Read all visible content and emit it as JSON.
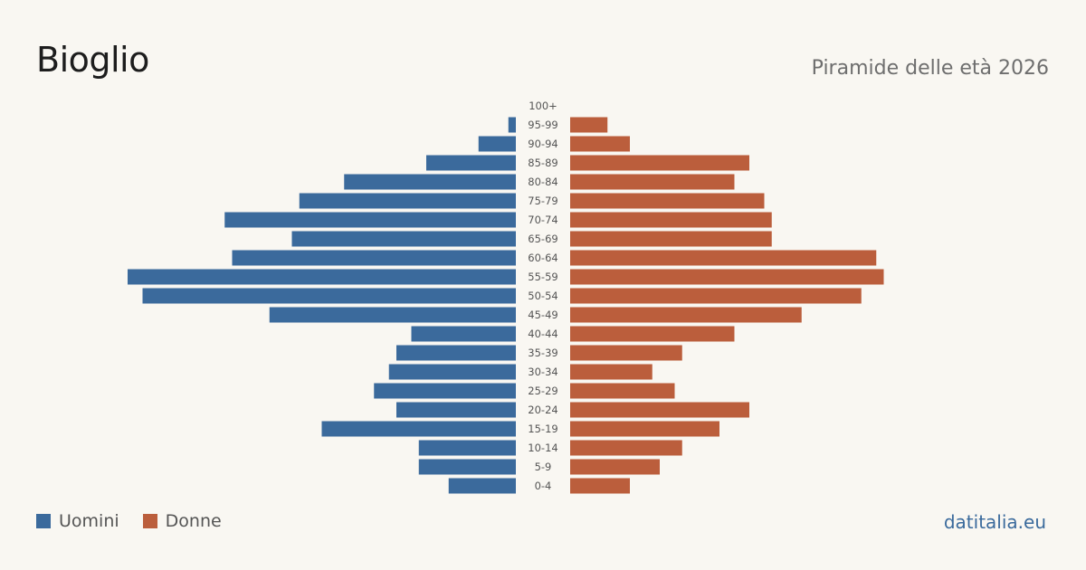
{
  "header": {
    "title": "Bioglio",
    "subtitle": "Piramide delle età 2026"
  },
  "footer": {
    "source": "datitalia.eu"
  },
  "colors": {
    "men": "#3b6a9c",
    "women": "#bb5e3c"
  },
  "chart_data": {
    "type": "bar",
    "orientation": "horizontal",
    "layout": "population-pyramid",
    "categories": [
      "100+",
      "95-99",
      "90-94",
      "85-89",
      "80-84",
      "75-79",
      "70-74",
      "65-69",
      "60-64",
      "55-59",
      "50-54",
      "45-49",
      "40-44",
      "35-39",
      "30-34",
      "25-29",
      "20-24",
      "15-19",
      "10-14",
      "5-9",
      "0-4"
    ],
    "series": [
      {
        "name": "Uomini",
        "values": [
          0,
          1,
          5,
          12,
          23,
          29,
          39,
          30,
          38,
          52,
          50,
          33,
          14,
          16,
          17,
          19,
          16,
          26,
          13,
          13,
          9
        ]
      },
      {
        "name": "Donne",
        "values": [
          0,
          5,
          8,
          24,
          22,
          26,
          27,
          27,
          41,
          42,
          39,
          31,
          22,
          15,
          11,
          14,
          24,
          20,
          15,
          12,
          8
        ]
      }
    ],
    "legend": {
      "position": "bottom-left",
      "entries": [
        "Uomini",
        "Donne"
      ]
    },
    "grid": false,
    "xlabel": "",
    "ylabel": ""
  }
}
